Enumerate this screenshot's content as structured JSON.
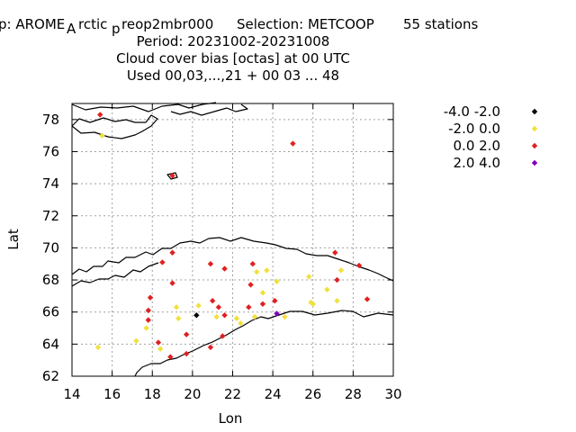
{
  "chart_data": {
    "type": "scatter",
    "title_lines": [
      "p: AROME",
      "A",
      "rctic",
      "p",
      "reop2mbr000",
      "Selection: METCOOP",
      "55 stations",
      "Period: 20231002-20231008",
      "Cloud cover bias [octas] at  00 UTC",
      "Used  00,03,...,21  + 00 03 ... 48"
    ],
    "xlabel": "Lon",
    "ylabel": "Lat",
    "xlim": [
      14,
      30
    ],
    "ylim": [
      62,
      79
    ],
    "xticks": [
      14,
      16,
      18,
      20,
      22,
      24,
      26,
      28,
      30
    ],
    "yticks": [
      62,
      64,
      66,
      68,
      70,
      72,
      74,
      76,
      78
    ],
    "xtick_labels": [
      "14",
      "16",
      "18",
      "20",
      "22",
      "24",
      "26",
      "28",
      "30"
    ],
    "ytick_labels": [
      "62",
      "64",
      "66",
      "68",
      "70",
      "72",
      "74",
      "76",
      "78"
    ],
    "grid": true,
    "legend_position": "right",
    "series": [
      {
        "name": "-4.0 -2.0",
        "color": "#000000",
        "points": [
          [
            20.2,
            65.8
          ]
        ]
      },
      {
        "name": "-2.0 0.0",
        "color": "#f0e040",
        "points": [
          [
            15.5,
            77.0
          ],
          [
            15.3,
            63.8
          ],
          [
            17.2,
            64.2
          ],
          [
            17.7,
            65.0
          ],
          [
            18.4,
            63.7
          ],
          [
            19.2,
            66.3
          ],
          [
            19.3,
            65.6
          ],
          [
            20.3,
            66.4
          ],
          [
            21.2,
            65.7
          ],
          [
            22.2,
            65.6
          ],
          [
            22.4,
            65.3
          ],
          [
            23.1,
            65.7
          ],
          [
            23.2,
            68.5
          ],
          [
            23.5,
            67.2
          ],
          [
            23.7,
            68.6
          ],
          [
            24.2,
            67.9
          ],
          [
            24.6,
            65.7
          ],
          [
            25.8,
            68.2
          ],
          [
            25.9,
            66.6
          ],
          [
            26.0,
            66.5
          ],
          [
            26.7,
            67.4
          ],
          [
            27.2,
            66.7
          ],
          [
            27.4,
            68.6
          ]
        ]
      },
      {
        "name": "0.0 2.0",
        "color": "#e02020",
        "points": [
          [
            15.4,
            78.3
          ],
          [
            25.0,
            76.5
          ],
          [
            19.0,
            74.5
          ],
          [
            19.0,
            69.7
          ],
          [
            18.5,
            69.1
          ],
          [
            19.0,
            67.8
          ],
          [
            17.9,
            66.9
          ],
          [
            17.8,
            66.1
          ],
          [
            17.8,
            65.5
          ],
          [
            18.3,
            64.1
          ],
          [
            18.9,
            63.2
          ],
          [
            19.7,
            64.6
          ],
          [
            19.7,
            63.4
          ],
          [
            20.9,
            69.0
          ],
          [
            21.6,
            68.7
          ],
          [
            21.0,
            66.7
          ],
          [
            21.3,
            66.3
          ],
          [
            20.9,
            63.8
          ],
          [
            21.5,
            64.5
          ],
          [
            21.6,
            65.8
          ],
          [
            22.8,
            66.3
          ],
          [
            22.9,
            67.7
          ],
          [
            23.0,
            69.0
          ],
          [
            23.5,
            66.5
          ],
          [
            24.1,
            66.7
          ],
          [
            27.1,
            69.7
          ],
          [
            27.2,
            68.0
          ],
          [
            28.3,
            68.9
          ],
          [
            28.7,
            66.8
          ]
        ]
      },
      {
        "name": "2.0 4.0",
        "color": "#8000c0",
        "points": [
          [
            24.2,
            65.9
          ]
        ]
      }
    ]
  }
}
